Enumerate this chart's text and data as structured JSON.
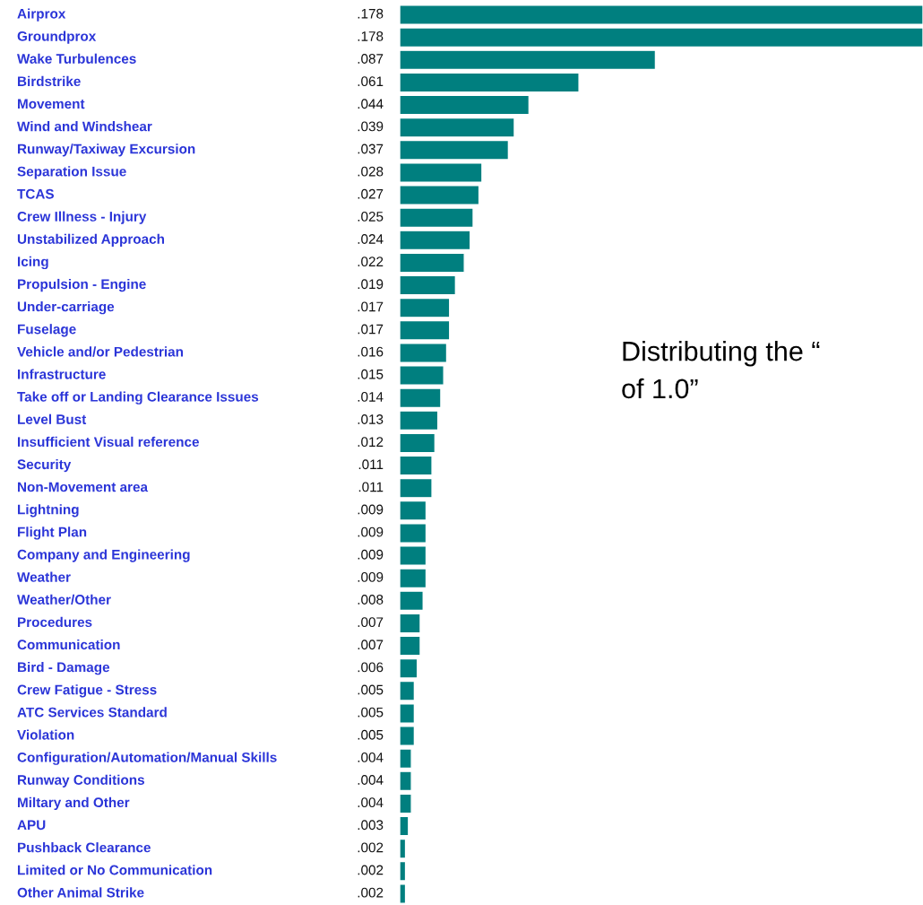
{
  "chart_data": {
    "type": "bar",
    "orientation": "horizontal",
    "categories": [
      "Airprox",
      "Groundprox",
      "Wake Turbulences",
      "Birdstrike",
      "Movement",
      "Wind and Windshear",
      "Runway/Taxiway Excursion",
      "Separation Issue",
      "TCAS",
      "Crew Illness - Injury",
      "Unstabilized Approach",
      "Icing",
      "Propulsion - Engine",
      "Under-carriage",
      "Fuselage",
      "Vehicle and/or Pedestrian",
      "Infrastructure",
      "Take off or Landing Clearance Issues",
      "Level Bust",
      "Insufficient Visual reference",
      "Security",
      "Non-Movement area",
      "Lightning",
      "Flight Plan",
      "Company and Engineering",
      "Weather",
      "Weather/Other",
      "Procedures",
      "Communication",
      "Bird - Damage",
      "Crew Fatigue - Stress",
      "ATC Services Standard",
      "Violation",
      "Configuration/Automation/Manual Skills",
      "Runway Conditions",
      "Miltary and Other",
      "APU",
      "Pushback Clearance",
      "Limited or No Communication",
      "Other Animal Strike"
    ],
    "values": [
      0.178,
      0.178,
      0.087,
      0.061,
      0.044,
      0.039,
      0.037,
      0.028,
      0.027,
      0.025,
      0.024,
      0.022,
      0.019,
      0.017,
      0.017,
      0.016,
      0.015,
      0.014,
      0.013,
      0.012,
      0.011,
      0.011,
      0.009,
      0.009,
      0.009,
      0.009,
      0.008,
      0.007,
      0.007,
      0.006,
      0.005,
      0.005,
      0.005,
      0.004,
      0.004,
      0.004,
      0.003,
      0.002,
      0.002,
      0.002
    ],
    "value_labels": [
      ".178",
      ".178",
      ".087",
      ".061",
      ".044",
      ".039",
      ".037",
      ".028",
      ".027",
      ".025",
      ".024",
      ".022",
      ".019",
      ".017",
      ".017",
      ".016",
      ".015",
      ".014",
      ".013",
      ".012",
      ".011",
      ".011",
      ".009",
      ".009",
      ".009",
      ".009",
      ".008",
      ".007",
      ".007",
      ".006",
      ".005",
      ".005",
      ".005",
      ".004",
      ".004",
      ".004",
      ".003",
      ".002",
      ".002",
      ".002"
    ],
    "color": "#007f7f",
    "annotations": [
      "Distributing the “\nof 1.0”"
    ]
  }
}
